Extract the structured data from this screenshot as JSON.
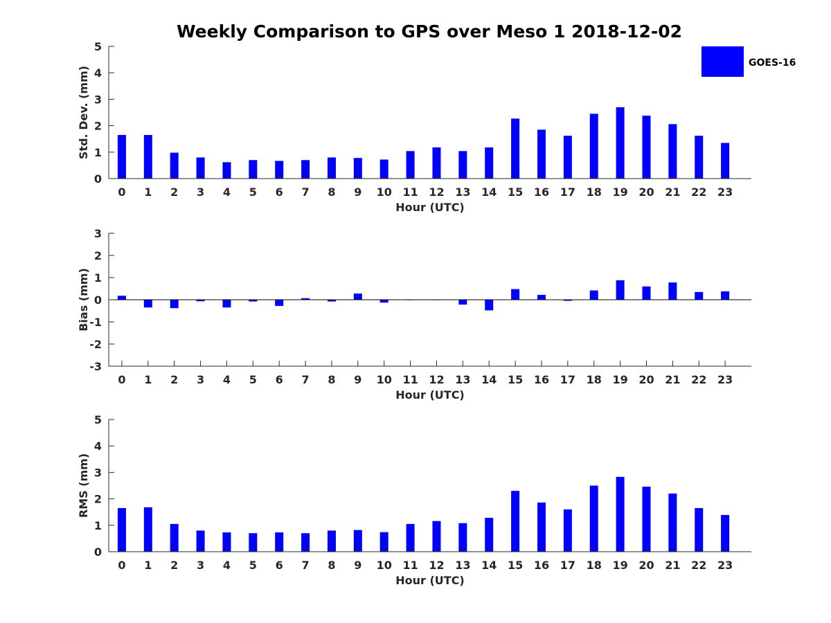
{
  "chart_data": {
    "title": "Weekly Comparison to GPS over Meso 1 2018-12-02",
    "type": "bar",
    "legend": {
      "position": "top-right",
      "entries": [
        {
          "name": "GOES-16",
          "color": "#0000ff"
        }
      ]
    },
    "subplots": [
      {
        "type": "bar",
        "ylabel": "Std. Dev. (mm)",
        "xlabel": "Hour (UTC)",
        "ylim": [
          0,
          5
        ],
        "yticks": [
          "0",
          "1",
          "2",
          "3",
          "4",
          "5"
        ],
        "categories": [
          "0",
          "1",
          "2",
          "3",
          "4",
          "5",
          "6",
          "7",
          "8",
          "9",
          "10",
          "11",
          "12",
          "13",
          "14",
          "15",
          "16",
          "17",
          "18",
          "19",
          "20",
          "21",
          "22",
          "23"
        ],
        "series": [
          {
            "name": "GOES-16",
            "color": "#0000ff",
            "values": [
              1.65,
              1.65,
              0.98,
              0.8,
              0.62,
              0.7,
              0.67,
              0.7,
              0.8,
              0.78,
              0.72,
              1.04,
              1.18,
              1.04,
              1.18,
              2.27,
              1.85,
              1.62,
              2.45,
              2.7,
              2.38,
              2.06,
              1.62,
              1.35
            ]
          }
        ]
      },
      {
        "type": "bar",
        "ylabel": "Bias (mm)",
        "xlabel": "Hour (UTC)",
        "ylim": [
          -3,
          3
        ],
        "yticks": [
          "-3",
          "-2",
          "-1",
          "0",
          "1",
          "2",
          "3"
        ],
        "categories": [
          "0",
          "1",
          "2",
          "3",
          "4",
          "5",
          "6",
          "7",
          "8",
          "9",
          "10",
          "11",
          "12",
          "13",
          "14",
          "15",
          "16",
          "17",
          "18",
          "19",
          "20",
          "21",
          "22",
          "23"
        ],
        "series": [
          {
            "name": "GOES-16",
            "color": "#0000ff",
            "values": [
              0.18,
              -0.35,
              -0.38,
              -0.07,
              -0.35,
              -0.08,
              -0.28,
              0.07,
              -0.08,
              0.28,
              -0.13,
              -0.02,
              -0.02,
              -0.22,
              -0.48,
              0.48,
              0.22,
              -0.05,
              0.42,
              0.88,
              0.6,
              0.78,
              0.35,
              0.38
            ]
          }
        ]
      },
      {
        "type": "bar",
        "ylabel": "RMS (mm)",
        "xlabel": "Hour (UTC)",
        "ylim": [
          0,
          5
        ],
        "yticks": [
          "0",
          "1",
          "2",
          "3",
          "4",
          "5"
        ],
        "categories": [
          "0",
          "1",
          "2",
          "3",
          "4",
          "5",
          "6",
          "7",
          "8",
          "9",
          "10",
          "11",
          "12",
          "13",
          "14",
          "15",
          "16",
          "17",
          "18",
          "19",
          "20",
          "21",
          "22",
          "23"
        ],
        "series": [
          {
            "name": "GOES-16",
            "color": "#0000ff",
            "values": [
              1.65,
              1.68,
              1.05,
              0.8,
              0.73,
              0.7,
              0.73,
              0.7,
              0.8,
              0.82,
              0.74,
              1.05,
              1.16,
              1.08,
              1.28,
              2.3,
              1.86,
              1.6,
              2.5,
              2.83,
              2.46,
              2.2,
              1.65,
              1.39
            ]
          }
        ]
      }
    ]
  }
}
